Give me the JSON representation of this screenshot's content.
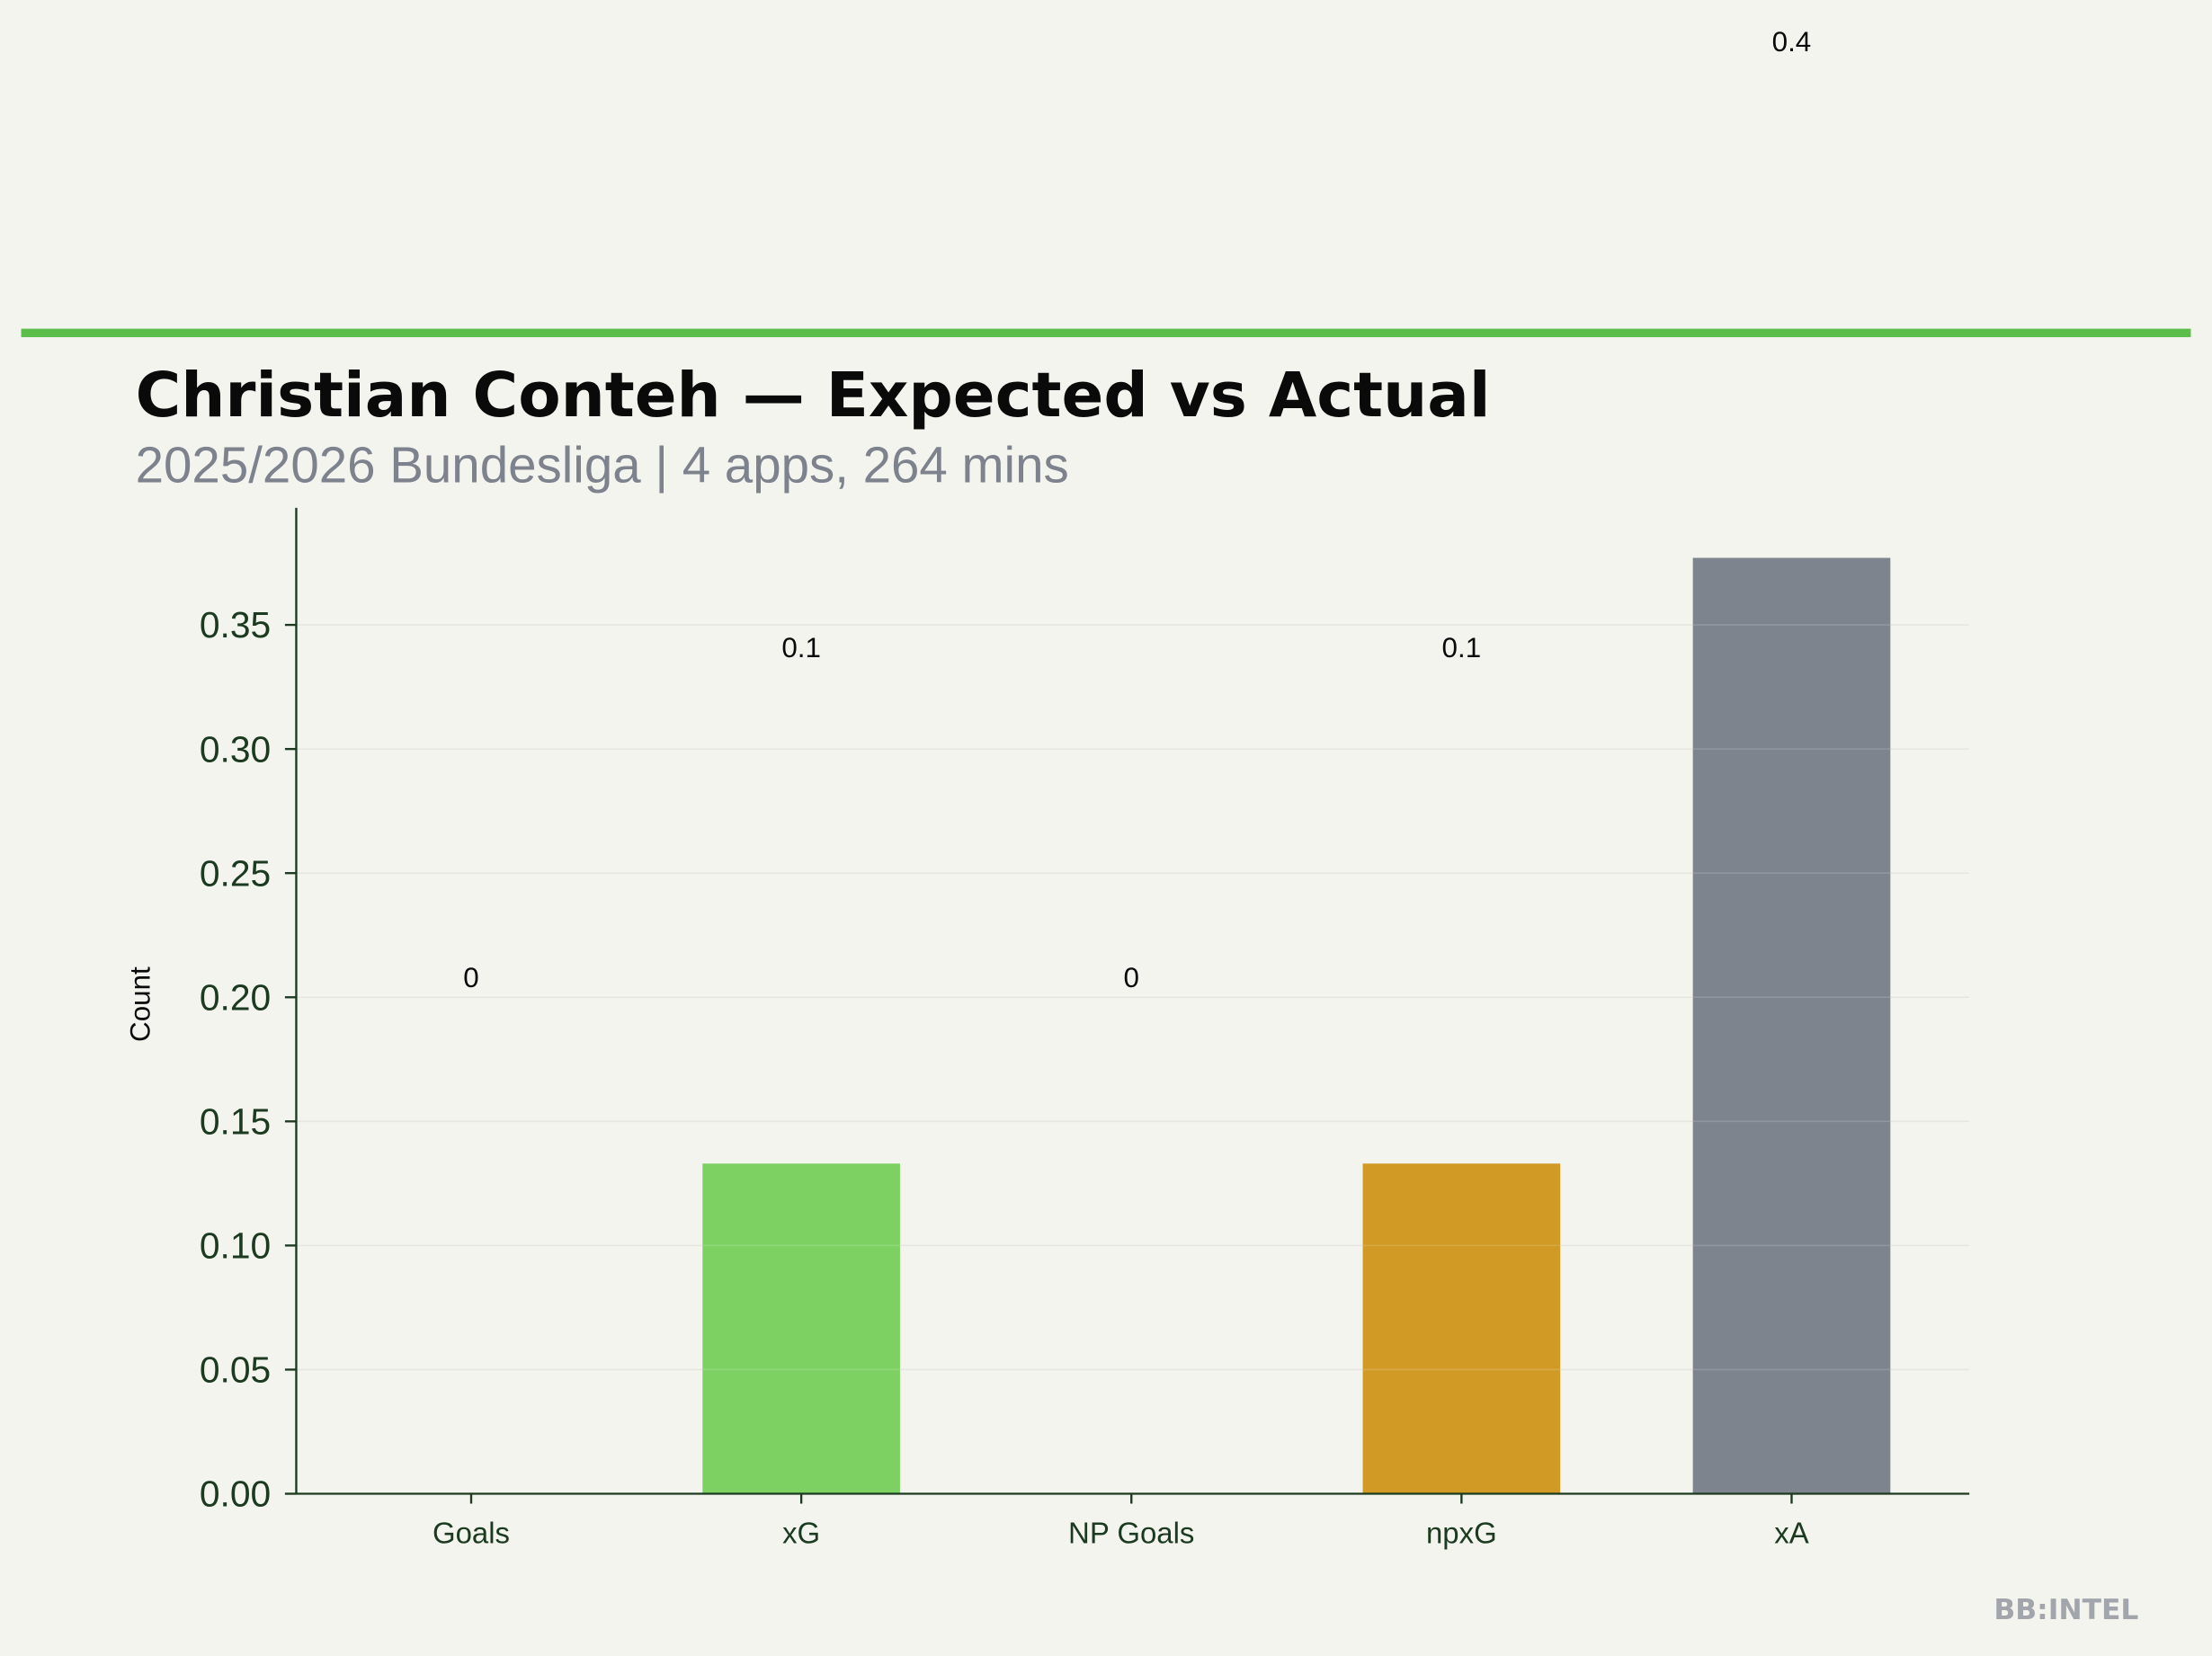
{
  "chart_data": {
    "type": "bar",
    "title": "Christian Conteh — Expected vs Actual",
    "subtitle": "2025/2026 Bundesliga | 4 apps, 264 mins",
    "xlabel": "",
    "ylabel": "Count",
    "categories": [
      "Goals",
      "xG",
      "NP Goals",
      "npxG",
      "xA"
    ],
    "values": [
      0,
      0.133,
      0,
      0.133,
      0.377
    ],
    "data_labels": [
      "0",
      "0.1",
      "0",
      "0.1",
      "0.4"
    ],
    "label_offset": 0.208,
    "colors": [
      "#7dd163",
      "#7dd163",
      "#7dd163",
      "#d19a24",
      "#7e848e"
    ],
    "ylim": [
      0,
      0.395
    ],
    "yticks": [
      0,
      0.05,
      0.1,
      0.15,
      0.2,
      0.25,
      0.3,
      0.35
    ],
    "ytick_labels": [
      "0.00",
      "0.05",
      "0.10",
      "0.15",
      "0.20",
      "0.25",
      "0.30",
      "0.35"
    ],
    "grid": true,
    "watermark": "BB:INTEL",
    "accent_color": "#5bbd4a"
  }
}
